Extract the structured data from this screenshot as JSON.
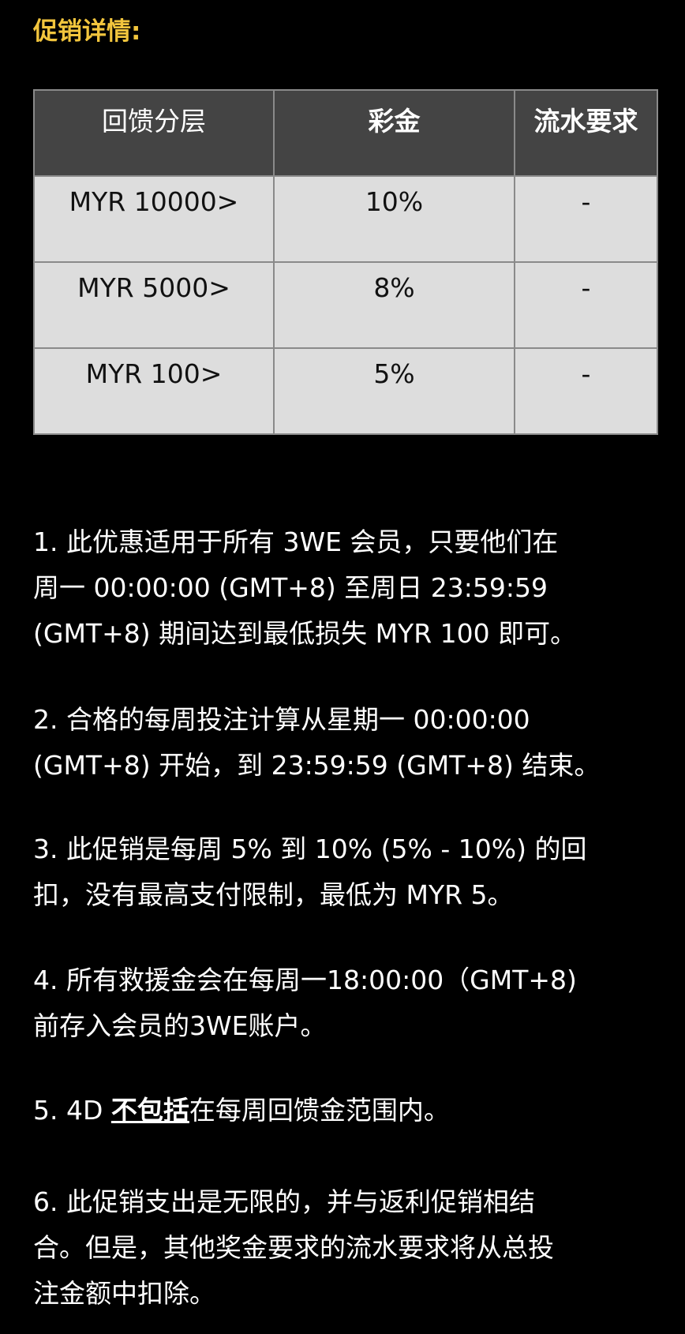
{
  "title": "促销详情:",
  "table": {
    "headers": [
      "回馈分层",
      "彩金",
      "流水要求"
    ],
    "rows": [
      [
        "MYR 10000>",
        "10%",
        "-"
      ],
      [
        "MYR 5000>",
        "8%",
        "-"
      ],
      [
        "MYR 100>",
        "5%",
        "-"
      ]
    ]
  },
  "terms": {
    "p1": [
      "1. 此优惠适用于所有 3WE 会员，只要他们在",
      "周一 00:00:00 (GMT+8) 至周日 23:59:59",
      "(GMT+8) 期间达到最低损失 MYR 100 即可。"
    ],
    "p2": [
      "2. 合格的每周投注计算从星期一 00:00:00",
      "(GMT+8) 开始，到 23:59:59 (GMT+8) 结束。"
    ],
    "p3": [
      "3. 此促销是每周 5% 到 10% (5% - 10%) 的回",
      "扣，没有最高支付限制，最低为 MYR 5。"
    ],
    "p4": [
      "4. 所有救援金会在每周一18:00:00（GMT+8)",
      "前存入会员的3WE账户。"
    ],
    "p5": {
      "prefix": "5. 4D ",
      "emphasis": "不包括",
      "suffix": "在每周回馈金范围内。"
    },
    "p6": [
      "6.  此促销支出是无限的，并与返利促销相结",
      "合。但是，其他奖金要求的流水要求将从总投",
      "注金额中扣除。"
    ]
  },
  "colors": {
    "title": "#f2c53d",
    "header_bg": "#444444",
    "cell_bg": "#dddddd",
    "background": "#000000"
  }
}
